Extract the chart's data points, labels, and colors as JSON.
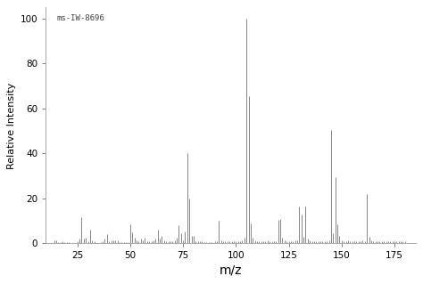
{
  "title": "ms-IW-8696",
  "xlabel": "m/z",
  "ylabel": "Relative Intensity",
  "xlim": [
    10,
    185
  ],
  "ylim": [
    0,
    105
  ],
  "xticks": [
    25,
    50,
    75,
    100,
    125,
    150,
    175
  ],
  "yticks": [
    0,
    20,
    40,
    60,
    80,
    100
  ],
  "background_color": "#ffffff",
  "line_color": "#666666",
  "figsize": [
    4.74,
    3.19
  ],
  "dpi": 100,
  "peaks": [
    [
      14,
      1.5
    ],
    [
      15,
      1.5
    ],
    [
      16,
      0.5
    ],
    [
      17,
      0.5
    ],
    [
      18,
      1.0
    ],
    [
      19,
      0.5
    ],
    [
      20,
      0.5
    ],
    [
      21,
      0.5
    ],
    [
      25,
      1.0
    ],
    [
      26,
      2.0
    ],
    [
      27,
      11.5
    ],
    [
      28,
      2.0
    ],
    [
      29,
      2.5
    ],
    [
      30,
      1.0
    ],
    [
      31,
      6.0
    ],
    [
      32,
      1.5
    ],
    [
      33,
      1.0
    ],
    [
      36,
      0.5
    ],
    [
      37,
      1.0
    ],
    [
      38,
      2.0
    ],
    [
      39,
      4.0
    ],
    [
      40,
      1.0
    ],
    [
      41,
      1.5
    ],
    [
      42,
      1.5
    ],
    [
      43,
      1.5
    ],
    [
      44,
      1.5
    ],
    [
      45,
      0.5
    ],
    [
      46,
      0.5
    ],
    [
      47,
      0.5
    ],
    [
      48,
      0.5
    ],
    [
      49,
      0.5
    ],
    [
      50,
      8.5
    ],
    [
      51,
      5.0
    ],
    [
      52,
      2.5
    ],
    [
      53,
      1.5
    ],
    [
      54,
      1.0
    ],
    [
      55,
      2.0
    ],
    [
      56,
      1.5
    ],
    [
      57,
      2.5
    ],
    [
      58,
      1.0
    ],
    [
      59,
      1.0
    ],
    [
      60,
      1.0
    ],
    [
      61,
      1.5
    ],
    [
      62,
      2.0
    ],
    [
      63,
      6.0
    ],
    [
      64,
      2.0
    ],
    [
      65,
      3.5
    ],
    [
      66,
      1.5
    ],
    [
      67,
      1.0
    ],
    [
      68,
      1.0
    ],
    [
      69,
      1.0
    ],
    [
      70,
      1.0
    ],
    [
      71,
      1.5
    ],
    [
      72,
      2.5
    ],
    [
      73,
      8.0
    ],
    [
      74,
      4.5
    ],
    [
      75,
      1.5
    ],
    [
      76,
      5.5
    ],
    [
      77,
      40.0
    ],
    [
      78,
      20.0
    ],
    [
      79,
      3.5
    ],
    [
      80,
      3.5
    ],
    [
      81,
      1.0
    ],
    [
      82,
      1.0
    ],
    [
      83,
      1.0
    ],
    [
      84,
      1.0
    ],
    [
      85,
      0.5
    ],
    [
      86,
      0.5
    ],
    [
      87,
      0.5
    ],
    [
      88,
      0.5
    ],
    [
      89,
      0.5
    ],
    [
      90,
      1.0
    ],
    [
      91,
      1.0
    ],
    [
      92,
      10.0
    ],
    [
      93,
      1.5
    ],
    [
      94,
      1.0
    ],
    [
      95,
      1.0
    ],
    [
      96,
      1.0
    ],
    [
      97,
      1.0
    ],
    [
      98,
      1.0
    ],
    [
      99,
      1.0
    ],
    [
      100,
      1.0
    ],
    [
      101,
      1.0
    ],
    [
      102,
      1.0
    ],
    [
      103,
      1.5
    ],
    [
      104,
      2.5
    ],
    [
      105,
      100.0
    ],
    [
      106,
      65.5
    ],
    [
      107,
      9.0
    ],
    [
      108,
      2.5
    ],
    [
      109,
      1.5
    ],
    [
      110,
      1.0
    ],
    [
      111,
      1.0
    ],
    [
      112,
      1.0
    ],
    [
      113,
      1.0
    ],
    [
      114,
      1.0
    ],
    [
      115,
      1.5
    ],
    [
      116,
      1.0
    ],
    [
      117,
      1.0
    ],
    [
      118,
      1.0
    ],
    [
      119,
      1.0
    ],
    [
      120,
      10.5
    ],
    [
      121,
      11.0
    ],
    [
      122,
      2.5
    ],
    [
      123,
      1.5
    ],
    [
      124,
      1.0
    ],
    [
      125,
      1.0
    ],
    [
      126,
      1.0
    ],
    [
      127,
      1.0
    ],
    [
      128,
      1.5
    ],
    [
      129,
      1.5
    ],
    [
      130,
      16.5
    ],
    [
      131,
      13.0
    ],
    [
      132,
      3.0
    ],
    [
      133,
      16.5
    ],
    [
      134,
      2.0
    ],
    [
      135,
      1.5
    ],
    [
      136,
      1.0
    ],
    [
      137,
      1.0
    ],
    [
      138,
      1.0
    ],
    [
      139,
      1.0
    ],
    [
      140,
      1.0
    ],
    [
      141,
      1.0
    ],
    [
      142,
      1.0
    ],
    [
      143,
      1.0
    ],
    [
      144,
      1.5
    ],
    [
      145,
      50.5
    ],
    [
      146,
      4.5
    ],
    [
      147,
      29.5
    ],
    [
      148,
      8.5
    ],
    [
      149,
      3.5
    ],
    [
      150,
      1.5
    ],
    [
      151,
      1.0
    ],
    [
      152,
      1.0
    ],
    [
      153,
      1.5
    ],
    [
      154,
      1.0
    ],
    [
      155,
      1.0
    ],
    [
      156,
      1.0
    ],
    [
      157,
      1.0
    ],
    [
      158,
      1.0
    ],
    [
      159,
      1.0
    ],
    [
      160,
      1.5
    ],
    [
      161,
      1.0
    ],
    [
      162,
      22.0
    ],
    [
      163,
      3.0
    ],
    [
      164,
      1.5
    ],
    [
      165,
      1.0
    ],
    [
      166,
      1.0
    ],
    [
      167,
      1.0
    ],
    [
      168,
      1.0
    ],
    [
      169,
      1.0
    ],
    [
      170,
      1.0
    ],
    [
      171,
      1.0
    ],
    [
      172,
      1.0
    ],
    [
      173,
      1.0
    ],
    [
      174,
      1.0
    ],
    [
      175,
      1.0
    ],
    [
      176,
      1.0
    ],
    [
      177,
      1.0
    ],
    [
      178,
      1.0
    ],
    [
      179,
      1.0
    ],
    [
      180,
      1.0
    ]
  ]
}
